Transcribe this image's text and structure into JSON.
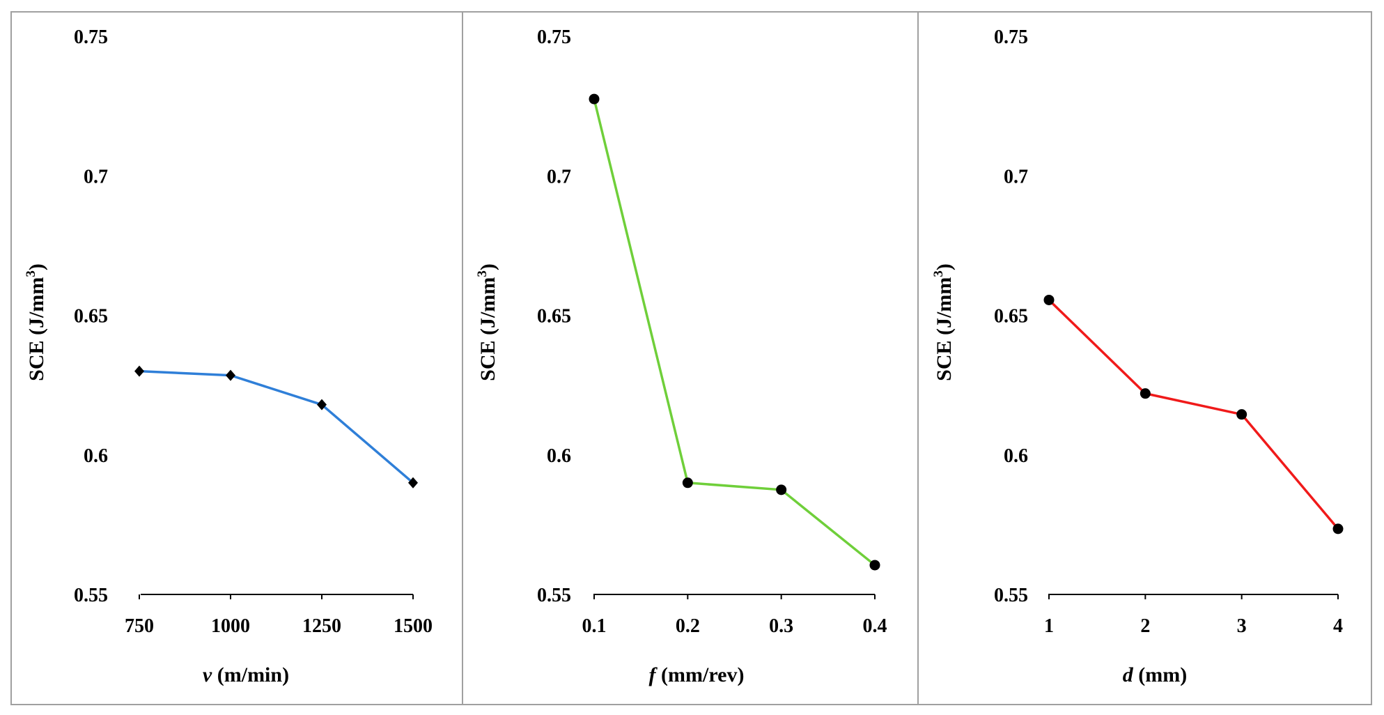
{
  "chart_data": [
    {
      "type": "line",
      "xlabel": "v (m/min)",
      "xlabel_var": "v",
      "xlabel_unit": " (m/min)",
      "ylabel": "SCE (J/mm3)",
      "ylabel_main": "SCE (J/mm",
      "ylabel_sup": "3",
      "ylabel_close": ")",
      "categories": [
        "750",
        "1000",
        "1250",
        "1500"
      ],
      "values": [
        0.63,
        0.6285,
        0.618,
        0.59
      ],
      "ylim": [
        0.55,
        0.75
      ],
      "yticks": [
        "0.55",
        "0.6",
        "0.65",
        "0.7",
        "0.75"
      ],
      "color": "#2f7fd8",
      "marker": "diamond"
    },
    {
      "type": "line",
      "xlabel": "f (mm/rev)",
      "xlabel_var": "f",
      "xlabel_unit": " (mm/rev)",
      "ylabel": "SCE (J/mm3)",
      "ylabel_main": "SCE (J/mm",
      "ylabel_sup": "3",
      "ylabel_close": ")",
      "categories": [
        "0.1",
        "0.2",
        "0.3",
        "0.4"
      ],
      "values": [
        0.7275,
        0.59,
        0.5875,
        0.5605
      ],
      "ylim": [
        0.55,
        0.75
      ],
      "yticks": [
        "0.55",
        "0.6",
        "0.65",
        "0.7",
        "0.75"
      ],
      "color": "#6fcf3a",
      "marker": "circle"
    },
    {
      "type": "line",
      "xlabel": "d (mm)",
      "xlabel_var": "d",
      "xlabel_unit": " (mm)",
      "ylabel": "SCE (J/mm3)",
      "ylabel_main": "SCE (J/mm",
      "ylabel_sup": "3",
      "ylabel_close": ")",
      "categories": [
        "1",
        "2",
        "3",
        "4"
      ],
      "values": [
        0.6555,
        0.622,
        0.6145,
        0.5735
      ],
      "ylim": [
        0.55,
        0.75
      ],
      "yticks": [
        "0.55",
        "0.6",
        "0.65",
        "0.7",
        "0.75"
      ],
      "color": "#f01a1a",
      "marker": "circle"
    }
  ]
}
